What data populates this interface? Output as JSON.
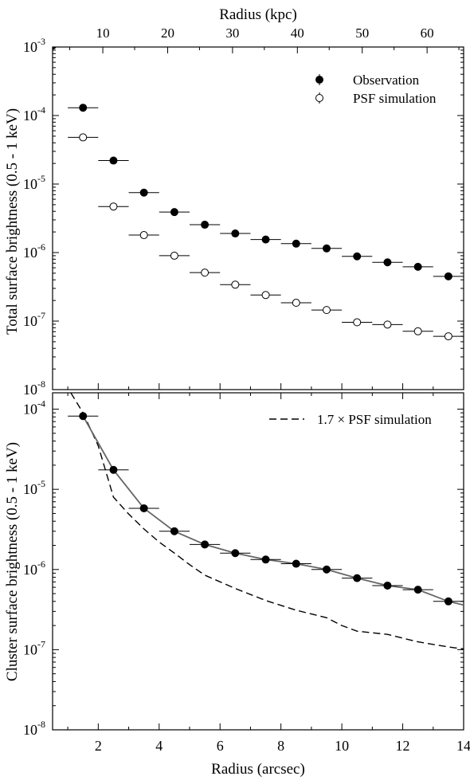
{
  "chart_data": [
    {
      "type": "scatter",
      "panel": "top",
      "xlabel_top": "Radius (kpc)",
      "ylabel": "Total surface brightness (0.5 - 1 keV)",
      "xlim": [
        0.5,
        14
      ],
      "ylim": [
        1e-08,
        0.001
      ],
      "yscale": "log",
      "x_ticks_top": [
        {
          "value": 10,
          "x": 2.15
        },
        {
          "value": 20,
          "x": 4.28
        },
        {
          "value": 30,
          "x": 6.41
        },
        {
          "value": 40,
          "x": 8.54
        },
        {
          "value": 50,
          "x": 10.67
        },
        {
          "value": 60,
          "x": 12.8
        }
      ],
      "y_ticks": [
        {
          "value": 0.001,
          "base": "10",
          "exp": "-3"
        },
        {
          "value": 0.0001,
          "base": "10",
          "exp": "-4"
        },
        {
          "value": 1e-05,
          "base": "10",
          "exp": "-5"
        },
        {
          "value": 1e-06,
          "base": "10",
          "exp": "-6"
        },
        {
          "value": 1e-07,
          "base": "10",
          "exp": "-7"
        },
        {
          "value": 1e-08,
          "base": "10",
          "exp": "-8"
        }
      ],
      "legend": {
        "position": "top-right"
      },
      "series": [
        {
          "name": "Observation",
          "marker": "filled-circle",
          "points": [
            {
              "x": 0.5,
              "y": 0.00105,
              "xerr": 0.5
            },
            {
              "x": 1.5,
              "y": 0.00013,
              "xerr": 0.5
            },
            {
              "x": 2.5,
              "y": 2.2e-05,
              "xerr": 0.5
            },
            {
              "x": 3.5,
              "y": 7.5e-06,
              "xerr": 0.5
            },
            {
              "x": 4.5,
              "y": 3.9e-06,
              "xerr": 0.5
            },
            {
              "x": 5.5,
              "y": 2.55e-06,
              "xerr": 0.5
            },
            {
              "x": 6.5,
              "y": 1.9e-06,
              "xerr": 0.5
            },
            {
              "x": 7.5,
              "y": 1.55e-06,
              "xerr": 0.5
            },
            {
              "x": 8.5,
              "y": 1.35e-06,
              "xerr": 0.5
            },
            {
              "x": 9.5,
              "y": 1.15e-06,
              "xerr": 0.5
            },
            {
              "x": 10.5,
              "y": 8.8e-07,
              "xerr": 0.5
            },
            {
              "x": 11.5,
              "y": 7.2e-07,
              "xerr": 0.5
            },
            {
              "x": 12.5,
              "y": 6.2e-07,
              "xerr": 0.5
            },
            {
              "x": 13.5,
              "y": 4.5e-07,
              "xerr": 0.5
            }
          ]
        },
        {
          "name": "PSF simulation",
          "marker": "open-circle",
          "points": [
            {
              "x": 1.5,
              "y": 4.8e-05,
              "xerr": 0.5
            },
            {
              "x": 2.5,
              "y": 4.7e-06,
              "xerr": 0.5
            },
            {
              "x": 3.5,
              "y": 1.8e-06,
              "xerr": 0.5
            },
            {
              "x": 4.5,
              "y": 9e-07,
              "xerr": 0.5
            },
            {
              "x": 5.5,
              "y": 5.1e-07,
              "xerr": 0.5
            },
            {
              "x": 6.5,
              "y": 3.4e-07,
              "xerr": 0.5
            },
            {
              "x": 7.5,
              "y": 2.4e-07,
              "xerr": 0.5
            },
            {
              "x": 8.5,
              "y": 1.85e-07,
              "xerr": 0.5
            },
            {
              "x": 9.5,
              "y": 1.45e-07,
              "xerr": 0.5
            },
            {
              "x": 10.5,
              "y": 9.6e-08,
              "xerr": 0.5
            },
            {
              "x": 11.5,
              "y": 8.9e-08,
              "xerr": 0.5
            },
            {
              "x": 12.5,
              "y": 7.1e-08,
              "xerr": 0.5
            },
            {
              "x": 13.5,
              "y": 6e-08,
              "xerr": 0.5
            }
          ]
        }
      ]
    },
    {
      "type": "line",
      "panel": "bottom",
      "xlabel": "Radius (arcsec)",
      "ylabel": "Cluster surface brightness (0.5 - 1 keV)",
      "xlim": [
        0.5,
        14
      ],
      "ylim": [
        1e-08,
        0.00016
      ],
      "yscale": "log",
      "x_ticks": [
        2,
        4,
        6,
        8,
        10,
        12,
        14
      ],
      "y_ticks": [
        {
          "value": 0.0001,
          "base": "10",
          "exp": "-4"
        },
        {
          "value": 1e-05,
          "base": "10",
          "exp": "-5"
        },
        {
          "value": 1e-06,
          "base": "10",
          "exp": "-6"
        },
        {
          "value": 1e-07,
          "base": "10",
          "exp": "-7"
        },
        {
          "value": 1e-08,
          "base": "10",
          "exp": "-8"
        }
      ],
      "legend": {
        "position": "top-right"
      },
      "series": [
        {
          "name": "Observation",
          "marker": "filled-circle",
          "points": [
            {
              "x": 1.5,
              "y": 8.2e-05,
              "xerr": 0.5
            },
            {
              "x": 2.5,
              "y": 1.75e-05,
              "xerr": 0.5
            },
            {
              "x": 3.5,
              "y": 5.8e-06,
              "xerr": 0.5
            },
            {
              "x": 4.5,
              "y": 3e-06,
              "xerr": 0.5
            },
            {
              "x": 5.5,
              "y": 2.05e-06,
              "xerr": 0.5
            },
            {
              "x": 6.5,
              "y": 1.6e-06,
              "xerr": 0.5
            },
            {
              "x": 7.5,
              "y": 1.33e-06,
              "xerr": 0.5
            },
            {
              "x": 8.5,
              "y": 1.18e-06,
              "xerr": 0.5
            },
            {
              "x": 9.5,
              "y": 1e-06,
              "xerr": 0.5
            },
            {
              "x": 10.5,
              "y": 7.8e-07,
              "xerr": 0.5
            },
            {
              "x": 11.5,
              "y": 6.3e-07,
              "xerr": 0.5
            },
            {
              "x": 12.5,
              "y": 5.6e-07,
              "xerr": 0.5
            },
            {
              "x": 13.5,
              "y": 4e-07,
              "xerr": 0.5
            }
          ]
        },
        {
          "name": "",
          "style": "solid-gray",
          "x": [
            1.5,
            2.5,
            3.5,
            4.5,
            5.5,
            6.5,
            7.5,
            8.5,
            9.5,
            10.5,
            11.5,
            12.5,
            13.5,
            14.0
          ],
          "y": [
            8.2e-05,
            1.75e-05,
            5.8e-06,
            3e-06,
            2.05e-06,
            1.6e-06,
            1.33e-06,
            1.18e-06,
            1e-06,
            7.8e-07,
            6.3e-07,
            5.6e-07,
            4e-07,
            3.6e-07
          ]
        },
        {
          "name": "1.7 × PSF simulation",
          "style": "dashed",
          "x": [
            1.1,
            1.5,
            2.0,
            2.5,
            3.0,
            3.5,
            4.0,
            4.5,
            5.0,
            5.5,
            6.5,
            7.5,
            8.5,
            9.5,
            10.0,
            10.5,
            11.5,
            12.5,
            13.5,
            14.0
          ],
          "y": [
            0.00016,
            9e-05,
            3.5e-05,
            8e-06,
            4.9e-06,
            3.2e-06,
            2.2e-06,
            1.6e-06,
            1.15e-06,
            8.5e-07,
            5.8e-07,
            4.1e-07,
            3.1e-07,
            2.5e-07,
            2e-07,
            1.7e-07,
            1.55e-07,
            1.25e-07,
            1.08e-07,
            1.02e-07
          ]
        }
      ]
    }
  ]
}
